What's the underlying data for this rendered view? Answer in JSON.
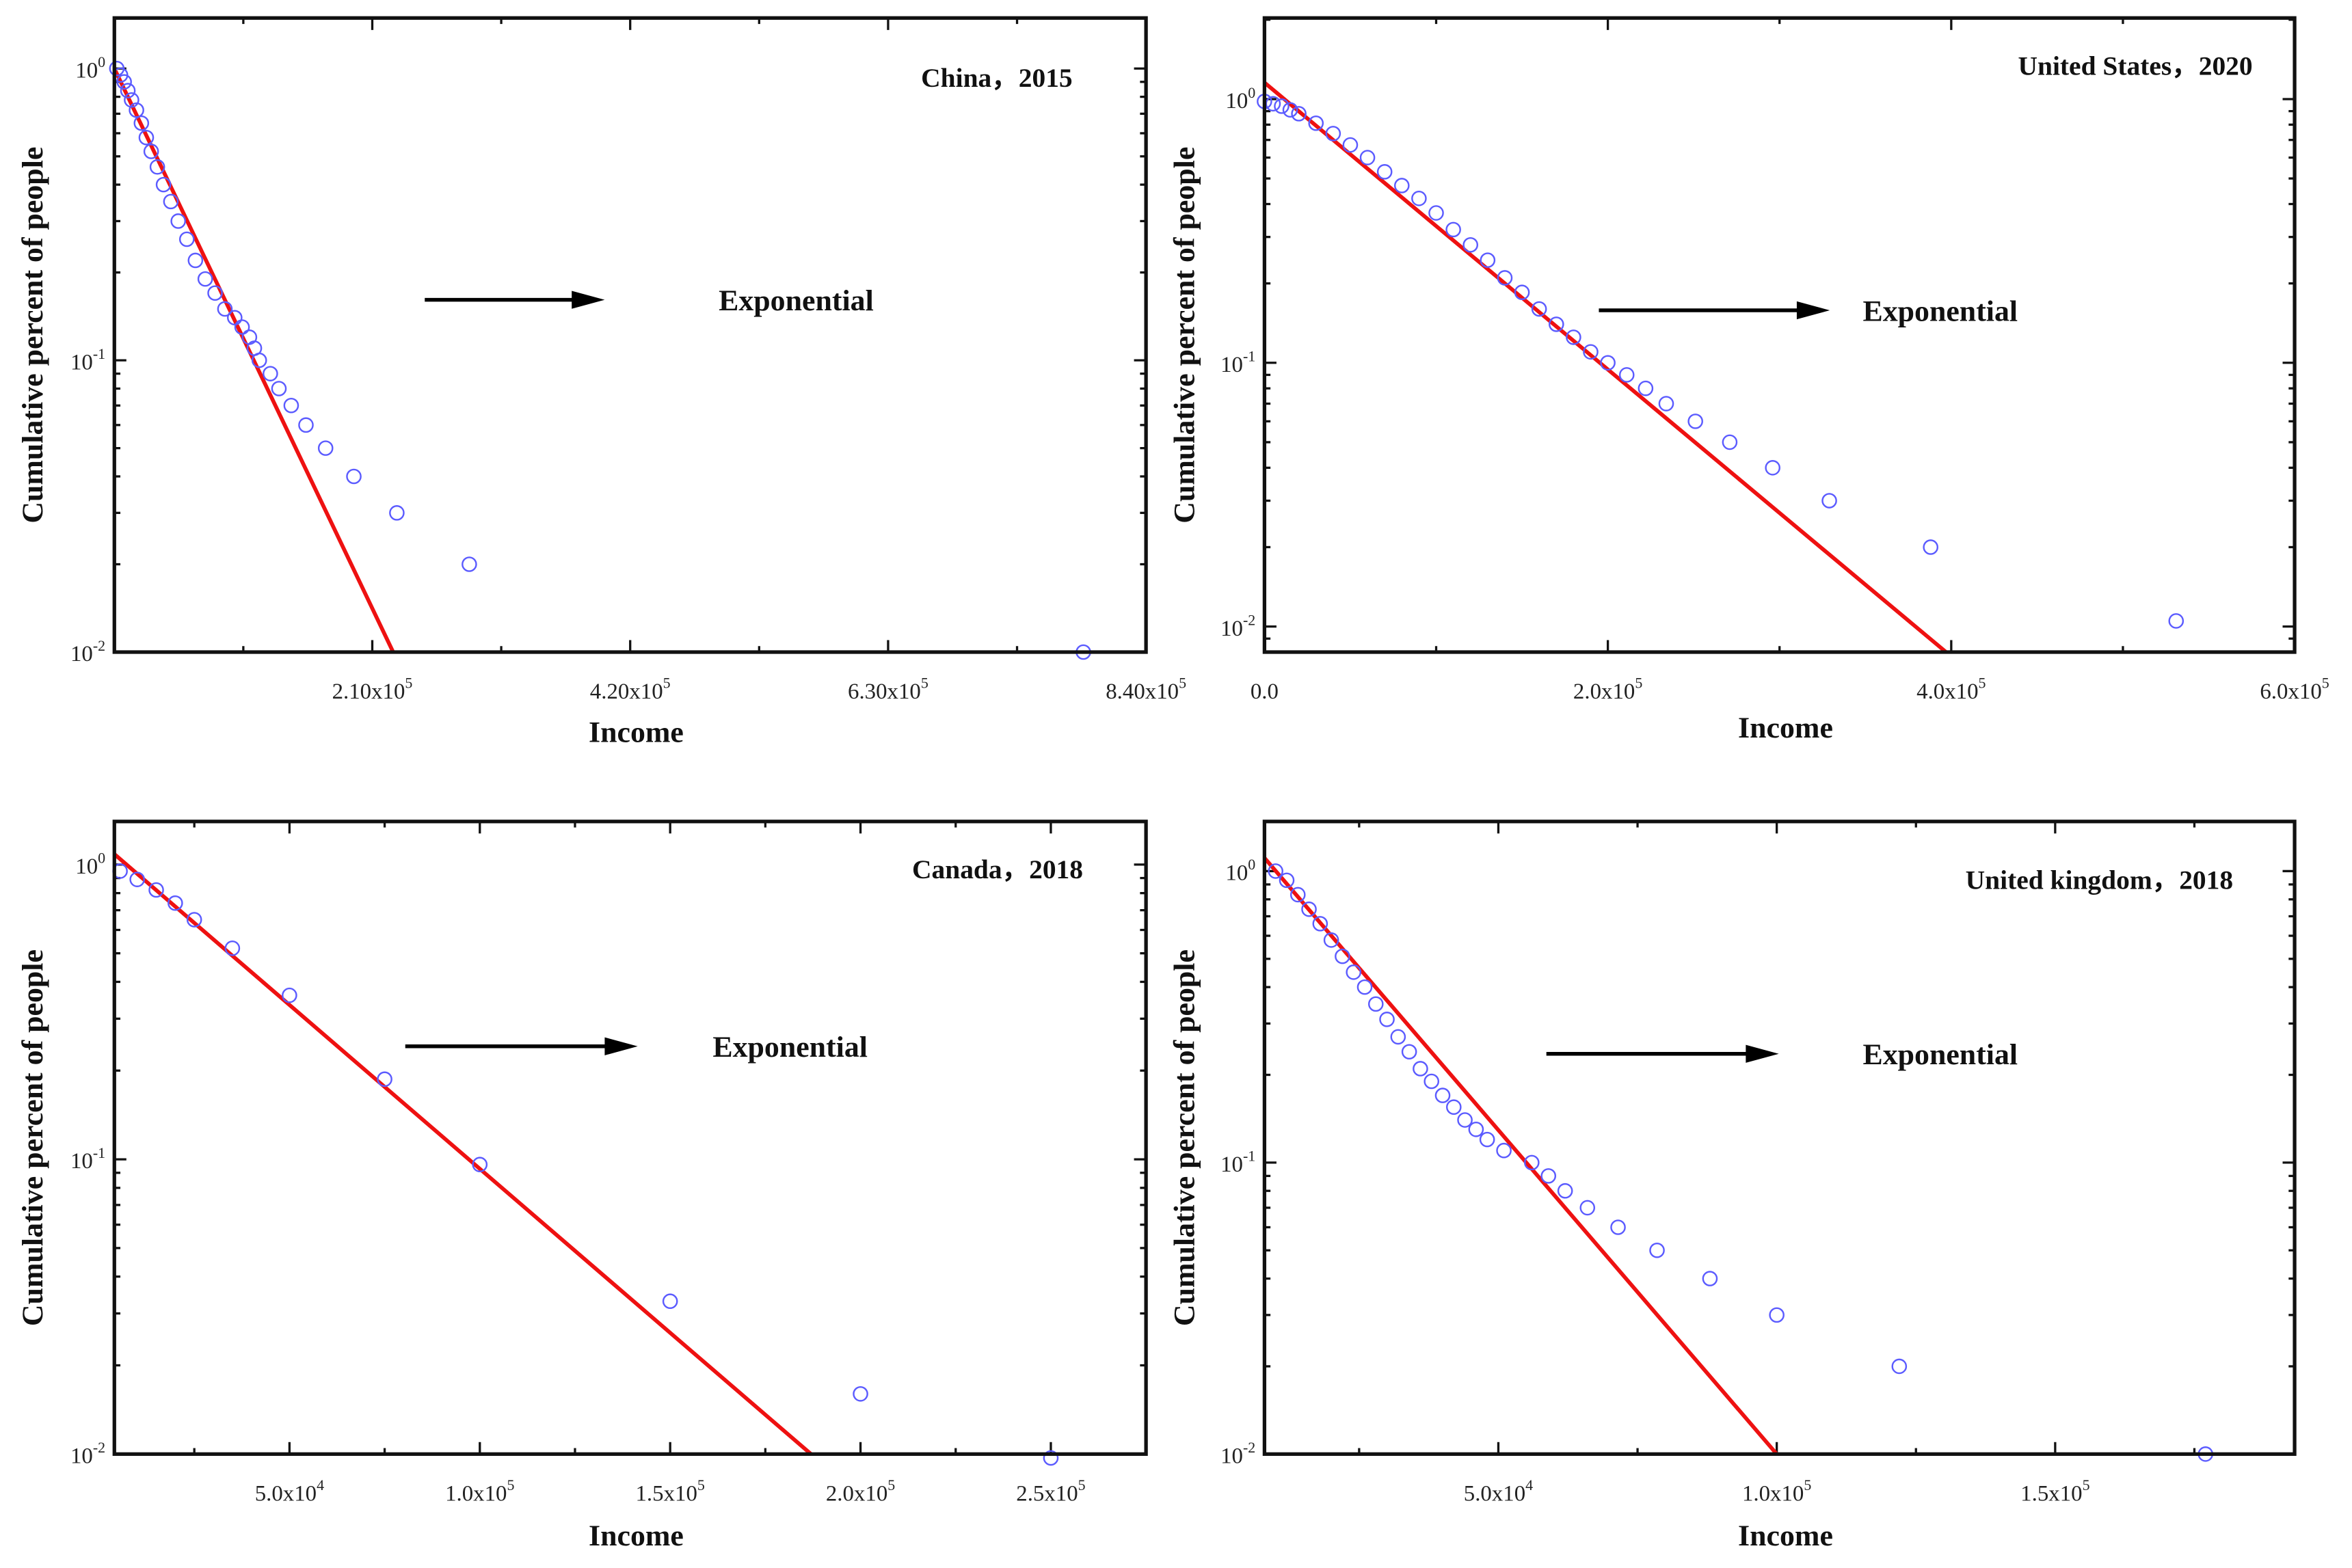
{
  "colors": {
    "points": "#5b5bff",
    "fit": "#ee1111",
    "axis": "#111111"
  },
  "chart_data": [
    {
      "type": "scatter",
      "title": "China，2015",
      "xlabel": "Income",
      "ylabel": "Cumulative percent of people",
      "annotation": "Exponential",
      "xscale": "linear",
      "yscale": "log",
      "xlim": [
        0,
        840000
      ],
      "ylim": [
        0.01,
        1.49
      ],
      "xticks": [
        {
          "v": 210000,
          "label": "2.10x10^5"
        },
        {
          "v": 420000,
          "label": "4.20x10^5"
        },
        {
          "v": 630000,
          "label": "6.30x10^5"
        },
        {
          "v": 840000,
          "label": "8.40x10^5"
        }
      ],
      "yticks": [
        {
          "v": 1,
          "label": "10^0"
        },
        {
          "v": 0.1,
          "label": "10^-1"
        },
        {
          "v": 0.01,
          "label": "10^-2"
        }
      ],
      "points": [
        [
          2000,
          1
        ],
        [
          5000,
          0.95
        ],
        [
          8000,
          0.9
        ],
        [
          11000,
          0.84
        ],
        [
          14000,
          0.78
        ],
        [
          18000,
          0.72
        ],
        [
          22000,
          0.65
        ],
        [
          26000,
          0.58
        ],
        [
          30000,
          0.52
        ],
        [
          35000,
          0.46
        ],
        [
          40000,
          0.4
        ],
        [
          46000,
          0.35
        ],
        [
          52000,
          0.3
        ],
        [
          59000,
          0.26
        ],
        [
          66000,
          0.22
        ],
        [
          74000,
          0.19
        ],
        [
          82000,
          0.17
        ],
        [
          90000,
          0.15
        ],
        [
          98000,
          0.14
        ],
        [
          104000,
          0.13
        ],
        [
          110000,
          0.12
        ],
        [
          114000,
          0.11
        ],
        [
          118000,
          0.1
        ],
        [
          127000,
          0.09
        ],
        [
          134000,
          0.08
        ],
        [
          144000,
          0.07
        ],
        [
          156000,
          0.06
        ],
        [
          172000,
          0.05
        ],
        [
          195000,
          0.04
        ],
        [
          230000,
          0.03
        ],
        [
          289000,
          0.02
        ],
        [
          789000,
          0.01
        ]
      ],
      "fit_line": [
        [
          0,
          1.0
        ],
        [
          227000,
          0.01
        ]
      ]
    },
    {
      "type": "scatter",
      "title": "United States，2020",
      "xlabel": "Income",
      "ylabel": "Cumulative percent of people",
      "annotation": "Exponential",
      "xscale": "linear",
      "yscale": "log",
      "xlim": [
        0,
        600000
      ],
      "ylim": [
        0.008,
        2.03
      ],
      "xticks": [
        {
          "v": 0,
          "label": "0.0"
        },
        {
          "v": 200000,
          "label": "2.0x10^5"
        },
        {
          "v": 400000,
          "label": "4.0x10^5"
        },
        {
          "v": 600000,
          "label": "6.0x10^5"
        }
      ],
      "yticks": [
        {
          "v": 1,
          "label": "10^0"
        },
        {
          "v": 0.1,
          "label": "10^-1"
        },
        {
          "v": 0.01,
          "label": "10^-2"
        }
      ],
      "points": [
        [
          0,
          0.98
        ],
        [
          5000,
          0.96
        ],
        [
          10000,
          0.94
        ],
        [
          15000,
          0.91
        ],
        [
          20000,
          0.88
        ],
        [
          30000,
          0.81
        ],
        [
          40000,
          0.74
        ],
        [
          50000,
          0.67
        ],
        [
          60000,
          0.6
        ],
        [
          70000,
          0.53
        ],
        [
          80000,
          0.47
        ],
        [
          90000,
          0.42
        ],
        [
          100000,
          0.37
        ],
        [
          110000,
          0.32
        ],
        [
          120000,
          0.28
        ],
        [
          130000,
          0.245
        ],
        [
          140000,
          0.21
        ],
        [
          150000,
          0.185
        ],
        [
          160000,
          0.16
        ],
        [
          170000,
          0.14
        ],
        [
          180000,
          0.125
        ],
        [
          190000,
          0.11
        ],
        [
          200000,
          0.1
        ],
        [
          211000,
          0.09
        ],
        [
          222000,
          0.08
        ],
        [
          234000,
          0.07
        ],
        [
          251000,
          0.06
        ],
        [
          271000,
          0.05
        ],
        [
          296000,
          0.04
        ],
        [
          329000,
          0.03
        ],
        [
          388000,
          0.02
        ],
        [
          531000,
          0.0105
        ]
      ],
      "fit_line": [
        [
          0,
          1.155
        ],
        [
          397000,
          0.008
        ]
      ]
    },
    {
      "type": "scatter",
      "title": "Canada，2018",
      "xlabel": "Income",
      "ylabel": "Cumulative percent of people",
      "annotation": "Exponential",
      "xscale": "linear",
      "yscale": "log",
      "xlim": [
        4000,
        275000
      ],
      "ylim": [
        0.01,
        1.4
      ],
      "xticks": [
        {
          "v": 50000,
          "label": "5.0x10^4"
        },
        {
          "v": 100000,
          "label": "1.0x10^5"
        },
        {
          "v": 150000,
          "label": "1.5x10^5"
        },
        {
          "v": 200000,
          "label": "2.0x10^5"
        },
        {
          "v": 250000,
          "label": "2.5x10^5"
        }
      ],
      "yticks": [
        {
          "v": 1,
          "label": "10^0"
        },
        {
          "v": 0.1,
          "label": "10^-1"
        },
        {
          "v": 0.01,
          "label": "10^-2"
        }
      ],
      "points": [
        [
          5500,
          0.95
        ],
        [
          10000,
          0.89
        ],
        [
          15000,
          0.82
        ],
        [
          20000,
          0.74
        ],
        [
          25000,
          0.65
        ],
        [
          35000,
          0.52
        ],
        [
          50000,
          0.36
        ],
        [
          75000,
          0.187
        ],
        [
          100000,
          0.096
        ],
        [
          150000,
          0.033
        ],
        [
          200000,
          0.016
        ],
        [
          250000,
          0.0097
        ]
      ],
      "fit_line": [
        [
          4000,
          1.085
        ],
        [
          187000,
          0.01
        ]
      ]
    },
    {
      "type": "scatter",
      "title": "United kingdom，2018",
      "xlabel": "Income",
      "ylabel": "Cumulative percent of people",
      "annotation": "Exponential",
      "xscale": "linear",
      "yscale": "log",
      "xlim": [
        8000,
        193000
      ],
      "ylim": [
        0.01,
        1.48
      ],
      "xticks": [
        {
          "v": 50000,
          "label": "5.0x10^4"
        },
        {
          "v": 100000,
          "label": "1.0x10^5"
        },
        {
          "v": 150000,
          "label": "1.5x10^5"
        }
      ],
      "yticks": [
        {
          "v": 1,
          "label": "10^0"
        },
        {
          "v": 0.1,
          "label": "10^-1"
        },
        {
          "v": 0.01,
          "label": "10^-2"
        }
      ],
      "points": [
        [
          10000,
          1.0
        ],
        [
          12000,
          0.93
        ],
        [
          14000,
          0.83
        ],
        [
          16000,
          0.74
        ],
        [
          18000,
          0.66
        ],
        [
          20000,
          0.58
        ],
        [
          22000,
          0.51
        ],
        [
          24000,
          0.45
        ],
        [
          26000,
          0.4
        ],
        [
          28000,
          0.35
        ],
        [
          30000,
          0.31
        ],
        [
          32000,
          0.27
        ],
        [
          34000,
          0.24
        ],
        [
          36000,
          0.21
        ],
        [
          38000,
          0.19
        ],
        [
          40000,
          0.17
        ],
        [
          42000,
          0.155
        ],
        [
          44000,
          0.14
        ],
        [
          46000,
          0.13
        ],
        [
          48000,
          0.12
        ],
        [
          51000,
          0.11
        ],
        [
          56000,
          0.1
        ],
        [
          59000,
          0.09
        ],
        [
          62000,
          0.08
        ],
        [
          66000,
          0.07
        ],
        [
          71500,
          0.06
        ],
        [
          78500,
          0.05
        ],
        [
          88000,
          0.04
        ],
        [
          100000,
          0.03
        ],
        [
          122000,
          0.02
        ],
        [
          177000,
          0.01
        ]
      ],
      "fit_line": [
        [
          8000,
          1.11
        ],
        [
          100000,
          0.01
        ]
      ]
    }
  ]
}
